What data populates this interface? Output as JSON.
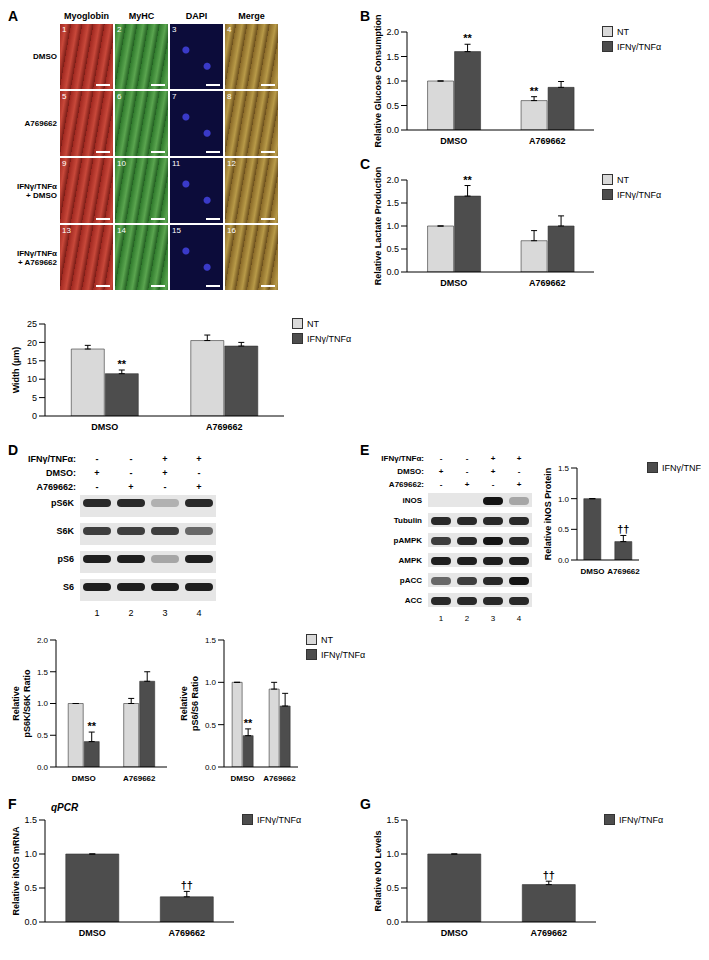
{
  "panel_labels": [
    "A",
    "B",
    "C",
    "D",
    "E",
    "F",
    "G"
  ],
  "images": {
    "columns": [
      "Myoglobin",
      "MyHC",
      "DAPI",
      "Merge"
    ],
    "rows": [
      [
        "DMSO"
      ],
      [
        "A769662"
      ],
      [
        "IFNγ/TNFα",
        "+ DMSO"
      ],
      [
        "IFNγ/TNFα",
        "+ A769662"
      ]
    ],
    "numbers": [
      [
        1,
        2,
        3,
        4
      ],
      [
        5,
        6,
        7,
        8
      ],
      [
        9,
        10,
        11,
        12
      ],
      [
        13,
        14,
        15,
        16
      ]
    ]
  },
  "blots": [
    {
      "treatments": [
        {
          "label": "IFNγ/TNFα:",
          "signs": [
            "-",
            "-",
            "+",
            "+"
          ]
        },
        {
          "label": "DMSO:",
          "signs": [
            "+",
            "-",
            "+",
            "-"
          ]
        },
        {
          "label": "A769662:",
          "signs": [
            "-",
            "+",
            "-",
            "+"
          ]
        }
      ],
      "rows": [
        {
          "label": "pS6K",
          "bands": [
            0.9,
            0.9,
            0.25,
            0.9
          ]
        },
        {
          "label": "S6K",
          "bands": [
            0.8,
            0.8,
            0.8,
            0.6
          ]
        },
        {
          "label": "pS6",
          "bands": [
            0.95,
            0.95,
            0.3,
            0.95
          ]
        },
        {
          "label": "S6",
          "bands": [
            0.95,
            0.95,
            0.95,
            0.95
          ]
        }
      ],
      "lanes": [
        1,
        2,
        3,
        4
      ]
    },
    {
      "treatments": [
        {
          "label": "IFNγ/TNFα:",
          "signs": [
            "-",
            "-",
            "+",
            "+"
          ]
        },
        {
          "label": "DMSO:",
          "signs": [
            "+",
            "-",
            "+",
            "-"
          ]
        },
        {
          "label": "A769662:",
          "signs": [
            "-",
            "+",
            "-",
            "+"
          ]
        }
      ],
      "rows": [
        {
          "label": "iNOS",
          "bands": [
            0,
            0,
            1,
            0.3
          ]
        },
        {
          "label": "Tubulin",
          "bands": [
            0.9,
            0.9,
            0.9,
            0.9
          ]
        },
        {
          "label": "pAMPK",
          "bands": [
            0.8,
            0.9,
            1,
            0.9
          ]
        },
        {
          "label": "AMPK",
          "bands": [
            0.95,
            0.95,
            0.95,
            0.95
          ]
        },
        {
          "label": "pACC",
          "bands": [
            0.6,
            0.8,
            0.9,
            1
          ]
        },
        {
          "label": "ACC",
          "bands": [
            0.9,
            0.9,
            0.9,
            0.9
          ]
        }
      ],
      "lanes": [
        1,
        2,
        3,
        4
      ]
    }
  ],
  "chart_data": [
    {
      "type": "bar",
      "ylabel": "Width (µm)",
      "categories": [
        "DMSO",
        "A769662"
      ],
      "series": [
        {
          "name": "NT",
          "color": "#d9d9d9",
          "values": [
            18.2,
            20.5
          ],
          "errors": [
            1.0,
            1.5
          ]
        },
        {
          "name": "IFNγ/TNFα",
          "color": "#4d4d4d",
          "values": [
            11.5,
            19.0
          ],
          "errors": [
            1.0,
            1.0
          ],
          "marks": [
            "**",
            null
          ]
        }
      ],
      "ylim": [
        0,
        25
      ],
      "yticks": [
        0,
        5,
        10,
        15,
        20,
        25
      ],
      "legend": "right"
    },
    {
      "type": "bar",
      "ylabel": "Relative Glucose Consumption",
      "categories": [
        "DMSO",
        "A769662"
      ],
      "series": [
        {
          "name": "NT",
          "color": "#d9d9d9",
          "values": [
            1.0,
            0.6
          ],
          "errors": [
            0,
            0.08
          ],
          "marks": [
            null,
            "**"
          ]
        },
        {
          "name": "IFNγ/TNFα",
          "color": "#4d4d4d",
          "values": [
            1.6,
            0.87
          ],
          "errors": [
            0.15,
            0.12
          ],
          "marks": [
            "**",
            null
          ]
        }
      ],
      "ylim": [
        0,
        2
      ],
      "yticks": [
        {
          "value": 0,
          "label": "0.0"
        },
        0.5,
        {
          "value": 1,
          "label": "1.0"
        },
        1.5,
        {
          "value": 2,
          "label": "2.0"
        }
      ],
      "legend": "right"
    },
    {
      "type": "bar",
      "ylabel": "Relative Lactate Production",
      "categories": [
        "DMSO",
        "A769662"
      ],
      "series": [
        {
          "name": "NT",
          "color": "#d9d9d9",
          "values": [
            1.0,
            0.68
          ],
          "errors": [
            0,
            0.22
          ]
        },
        {
          "name": "IFNγ/TNFα",
          "color": "#4d4d4d",
          "values": [
            1.65,
            1.0
          ],
          "errors": [
            0.23,
            0.22
          ],
          "marks": [
            "**",
            null
          ]
        }
      ],
      "ylim": [
        0,
        2
      ],
      "yticks": [
        {
          "value": 0,
          "label": "0.0"
        },
        0.5,
        {
          "value": 1,
          "label": "1.0"
        },
        1.5,
        {
          "value": 2,
          "label": "2.0"
        }
      ],
      "legend": "right"
    },
    {
      "type": "bar",
      "ylabel": [
        "Relative",
        "pS6K/S6K Ratio"
      ],
      "categories": [
        "DMSO",
        "A769662"
      ],
      "series": [
        {
          "name": "NT",
          "color": "#d9d9d9",
          "values": [
            1.0,
            1.0
          ],
          "errors": [
            0,
            0.08
          ]
        },
        {
          "name": "IFNγ/TNFα",
          "color": "#4d4d4d",
          "values": [
            0.4,
            1.35
          ],
          "errors": [
            0.15,
            0.15
          ],
          "marks": [
            "**",
            null
          ]
        }
      ],
      "ylim": [
        0,
        2
      ],
      "yticks": [
        {
          "value": 0,
          "label": "0.0"
        },
        0.5,
        {
          "value": 1,
          "label": "1.0"
        },
        1.5,
        {
          "value": 2,
          "label": "2.0"
        }
      ]
    },
    {
      "type": "bar",
      "ylabel": [
        "Relative",
        "pS6/S6 Ratio"
      ],
      "categories": [
        "DMSO",
        "A769662"
      ],
      "series": [
        {
          "name": "NT",
          "color": "#d9d9d9",
          "values": [
            1.0,
            0.92
          ],
          "errors": [
            0,
            0.08
          ]
        },
        {
          "name": "IFNγ/TNFα",
          "color": "#4d4d4d",
          "values": [
            0.37,
            0.72
          ],
          "errors": [
            0.08,
            0.15
          ],
          "marks": [
            "**",
            null
          ]
        }
      ],
      "ylim": [
        0,
        1.5
      ],
      "yticks": [
        {
          "value": 0,
          "label": "0.0"
        },
        0.5,
        {
          "value": 1,
          "label": "1.0"
        },
        1.5
      ],
      "legend": "right"
    },
    {
      "type": "bar",
      "ylabel": "Relative iNOS Protein",
      "categories": [
        "DMSO",
        "A769662"
      ],
      "series": [
        {
          "name": "IFNγ/TNFα",
          "color": "#4d4d4d",
          "values": [
            1.0,
            0.3
          ],
          "errors": [
            0,
            0.1
          ],
          "marks": [
            null,
            "††"
          ]
        }
      ],
      "ylim": [
        0,
        1.5
      ],
      "yticks": [
        {
          "value": 0,
          "label": "0.0"
        },
        0.5,
        {
          "value": 1,
          "label": "1.0"
        },
        1.5
      ],
      "legend": "right"
    },
    {
      "type": "bar",
      "title": "qPCR",
      "ylabel": "Relative iNOS mRNA",
      "categories": [
        "DMSO",
        "A769662"
      ],
      "series": [
        {
          "name": "IFNγ/TNFα",
          "color": "#4d4d4d",
          "values": [
            1.0,
            0.37
          ],
          "errors": [
            0,
            0.08
          ],
          "marks": [
            null,
            "††"
          ]
        }
      ],
      "ylim": [
        0,
        1.5
      ],
      "yticks": [
        {
          "value": 0,
          "label": "0.0"
        },
        0.5,
        {
          "value": 1,
          "label": "1.0"
        },
        1.5
      ],
      "legend": "right"
    },
    {
      "type": "bar",
      "ylabel": "Relative NO Levels",
      "categories": [
        "DMSO",
        "A769662"
      ],
      "series": [
        {
          "name": "IFNγ/TNFα",
          "color": "#4d4d4d",
          "values": [
            1.0,
            0.55
          ],
          "errors": [
            0,
            0.05
          ],
          "marks": [
            null,
            "††"
          ]
        }
      ],
      "ylim": [
        0,
        1.5
      ],
      "yticks": [
        {
          "value": 0,
          "label": "0.0"
        },
        0.5,
        {
          "value": 1,
          "label": "1.0"
        },
        1.5
      ],
      "legend": "right"
    }
  ]
}
